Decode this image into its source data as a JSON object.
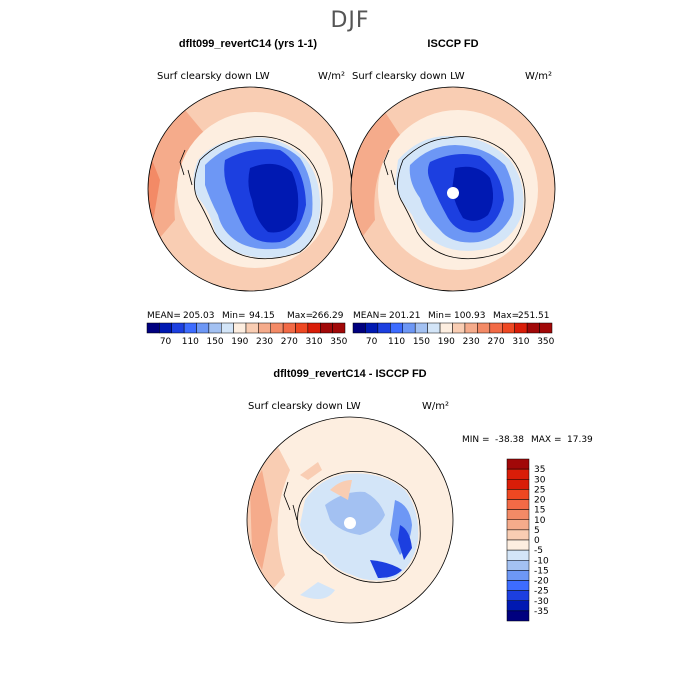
{
  "season_title": "DJF",
  "colors": {
    "cool": [
      "#00007f",
      "#0019b2",
      "#1c3fe0",
      "#3d6cff",
      "#6d97f5",
      "#a3c1f2",
      "#d3e5f8"
    ],
    "neutral": "#fdeee0",
    "warm": [
      "#f9cdb3",
      "#f5ab8b",
      "#f38a66",
      "#f26a46",
      "#ee4822",
      "#d91d08",
      "#a10808"
    ]
  },
  "chart_data": [
    {
      "type": "heatmap",
      "projection": "south-polar-stereographic",
      "title": "dflt099_revertC14 (yrs 1-1)",
      "variable": "Surf clearsky down LW",
      "units": "W/m²",
      "stats": {
        "mean_label": "MEAN=",
        "mean": "205.03",
        "min_label": "Min=",
        "min": "94.15",
        "max_label": "Max=",
        "max": "266.29"
      },
      "colorbar_ticks": [
        "70",
        "110",
        "150",
        "190",
        "230",
        "270",
        "310",
        "350"
      ],
      "colorbar_levels": 16
    },
    {
      "type": "heatmap",
      "projection": "south-polar-stereographic",
      "title": "ISCCP FD",
      "variable": "Surf clearsky down LW",
      "units": "W/m²",
      "stats": {
        "mean_label": "MEAN=",
        "mean": "201.21",
        "min_label": "Min=",
        "min": "100.93",
        "max_label": "Max=",
        "max": "251.51"
      },
      "colorbar_ticks": [
        "70",
        "110",
        "150",
        "190",
        "230",
        "270",
        "310",
        "350"
      ],
      "colorbar_levels": 16
    },
    {
      "type": "heatmap",
      "projection": "south-polar-stereographic",
      "title": "dflt099_revertC14 - ISCCP FD",
      "variable": "Surf clearsky down LW",
      "units": "W/m²",
      "stats": {
        "min_label": "MIN =",
        "min": "-38.38",
        "max_label": "MAX =",
        "max": "17.39"
      },
      "colorbar_ticks": [
        "35",
        "30",
        "25",
        "20",
        "15",
        "10",
        "5",
        "0",
        "-5",
        "-10",
        "-15",
        "-20",
        "-25",
        "-30",
        "-35"
      ]
    }
  ]
}
